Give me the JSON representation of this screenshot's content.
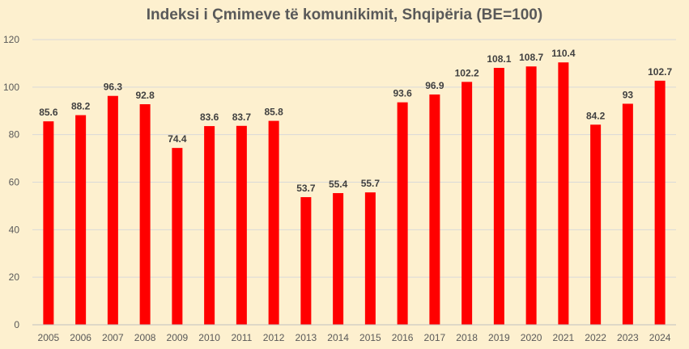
{
  "chart_data": {
    "type": "bar",
    "title": "Indeksi i Çmimeve të komunikimit, Shqipëria (BE=100)",
    "categories": [
      "2005",
      "2006",
      "2007",
      "2008",
      "2009",
      "2010",
      "2011",
      "2012",
      "2013",
      "2014",
      "2015",
      "2016",
      "2017",
      "2018",
      "2019",
      "2020",
      "2021",
      "2022",
      "2023",
      "2024"
    ],
    "values": [
      85.6,
      88.2,
      96.3,
      92.8,
      74.4,
      83.6,
      83.7,
      85.8,
      53.7,
      55.4,
      55.7,
      93.6,
      96.9,
      102.2,
      108.1,
      108.7,
      110.4,
      84.2,
      93,
      102.7
    ],
    "data_labels": [
      "85.6",
      "88.2",
      "96.3",
      "92.8",
      "74.4",
      "83.6",
      "83.7",
      "85.8",
      "53.7",
      "55.4",
      "55.7",
      "93.6",
      "96.9",
      "102.2",
      "108.1",
      "108.7",
      "110.4",
      "84.2",
      "93",
      "102.7"
    ],
    "ylim": [
      0,
      120
    ],
    "yticks": [
      "0",
      "20",
      "40",
      "60",
      "80",
      "100",
      "120"
    ],
    "grid": true,
    "bar_color": "#ff0000",
    "background_color": "#fdf0cf",
    "gridline_color": "#d9d9d9"
  }
}
